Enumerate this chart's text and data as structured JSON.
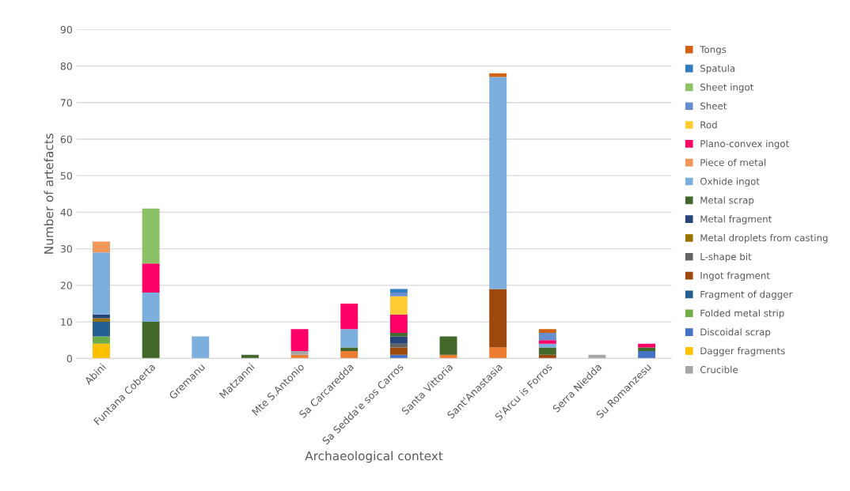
{
  "chart_data": {
    "type": "bar",
    "stacked": true,
    "xlabel": "Archaeological context",
    "ylabel": "Number of artefacts",
    "categories": [
      "Abini",
      "Funtana Coberta",
      "Gremanu",
      "Matzanni",
      "Mte S.Antonio",
      "Sa Carcaredda",
      "Sa Sedda'e sos Carros",
      "Santa Vittoria",
      "Sant'Anastasia",
      "S'Arcu is Forros",
      "Serra Niedda",
      "Su Romanzesu"
    ],
    "ylim": [
      0,
      90
    ],
    "yticks": [
      0,
      10,
      20,
      30,
      40,
      50,
      60,
      70,
      80,
      90
    ],
    "grid": "y",
    "legend": "right",
    "series": [
      {
        "color": "#ed7d31",
        "values": [
          0,
          0,
          0,
          0,
          1,
          2,
          0,
          1,
          3,
          0,
          0,
          0
        ]
      },
      {
        "name": "Crucible",
        "color": "#a5a5a5",
        "values": [
          0,
          0,
          0,
          0,
          1,
          0,
          0,
          0,
          0,
          0,
          1,
          0
        ]
      },
      {
        "name": "Dagger fragments",
        "color": "#ffc000",
        "values": [
          4,
          0,
          0,
          0,
          0,
          0,
          0,
          0,
          0,
          0,
          0,
          0
        ]
      },
      {
        "name": "Discoidal scrap",
        "color": "#4472c4",
        "values": [
          0,
          0,
          0,
          0,
          0,
          0,
          1,
          0,
          0,
          0,
          0,
          2
        ]
      },
      {
        "name": "Folded metal strip",
        "color": "#70ad47",
        "values": [
          2,
          0,
          0,
          0,
          0,
          0,
          0,
          0,
          0,
          0,
          0,
          0
        ]
      },
      {
        "name": "Fragment of dagger",
        "color": "#255e91",
        "values": [
          4,
          0,
          0,
          0,
          0,
          0,
          0,
          0,
          0,
          0,
          0,
          0
        ]
      },
      {
        "name": "Ingot fragment",
        "color": "#9e480e",
        "values": [
          0,
          0,
          0,
          0,
          0,
          0,
          2,
          0,
          16,
          1,
          0,
          0
        ]
      },
      {
        "name": "L-shape bit",
        "color": "#636363",
        "values": [
          0,
          0,
          0,
          0,
          0,
          0,
          1,
          0,
          0,
          0,
          0,
          0
        ]
      },
      {
        "name": "Metal droplets from casting",
        "color": "#997300",
        "values": [
          1,
          0,
          0,
          0,
          0,
          0,
          0,
          0,
          0,
          0,
          0,
          0
        ]
      },
      {
        "name": "Metal fragment",
        "color": "#264478",
        "values": [
          1,
          0,
          0,
          0,
          0,
          0,
          2,
          0,
          0,
          0,
          0,
          0
        ]
      },
      {
        "name": "Metal scrap",
        "color": "#43682b",
        "values": [
          0,
          10,
          0,
          1,
          0,
          1,
          1,
          5,
          0,
          2,
          0,
          1
        ]
      },
      {
        "name": "Oxhide ingot",
        "color": "#7cafdd",
        "values": [
          17,
          8,
          6,
          0,
          0,
          5,
          0,
          0,
          58,
          1,
          0,
          0
        ]
      },
      {
        "name": "Piece of metal",
        "color": "#f1975a",
        "values": [
          3,
          0,
          0,
          0,
          0,
          0,
          0,
          0,
          0,
          0,
          0,
          0
        ]
      },
      {
        "name": "Plano-convex ingot",
        "color": "#ff0066",
        "values": [
          0,
          8,
          0,
          0,
          6,
          7,
          5,
          0,
          0,
          1,
          0,
          1
        ]
      },
      {
        "name": "Rod",
        "color": "#ffcd33",
        "values": [
          0,
          0,
          0,
          0,
          0,
          0,
          5,
          0,
          0,
          0,
          0,
          0
        ]
      },
      {
        "name": "Sheet",
        "color": "#698ed0",
        "values": [
          0,
          0,
          0,
          0,
          0,
          0,
          1,
          0,
          0,
          2,
          0,
          0
        ]
      },
      {
        "name": "Sheet ingot",
        "color": "#8cc168",
        "values": [
          0,
          15,
          0,
          0,
          0,
          0,
          0,
          0,
          0,
          0,
          0,
          0
        ]
      },
      {
        "name": "Spatula",
        "color": "#327dc2",
        "values": [
          0,
          0,
          0,
          0,
          0,
          0,
          1,
          0,
          0,
          0,
          0,
          0
        ]
      },
      {
        "name": "Tongs",
        "color": "#d26012",
        "values": [
          0,
          0,
          0,
          0,
          0,
          0,
          0,
          0,
          1,
          1,
          0,
          0
        ]
      }
    ]
  }
}
